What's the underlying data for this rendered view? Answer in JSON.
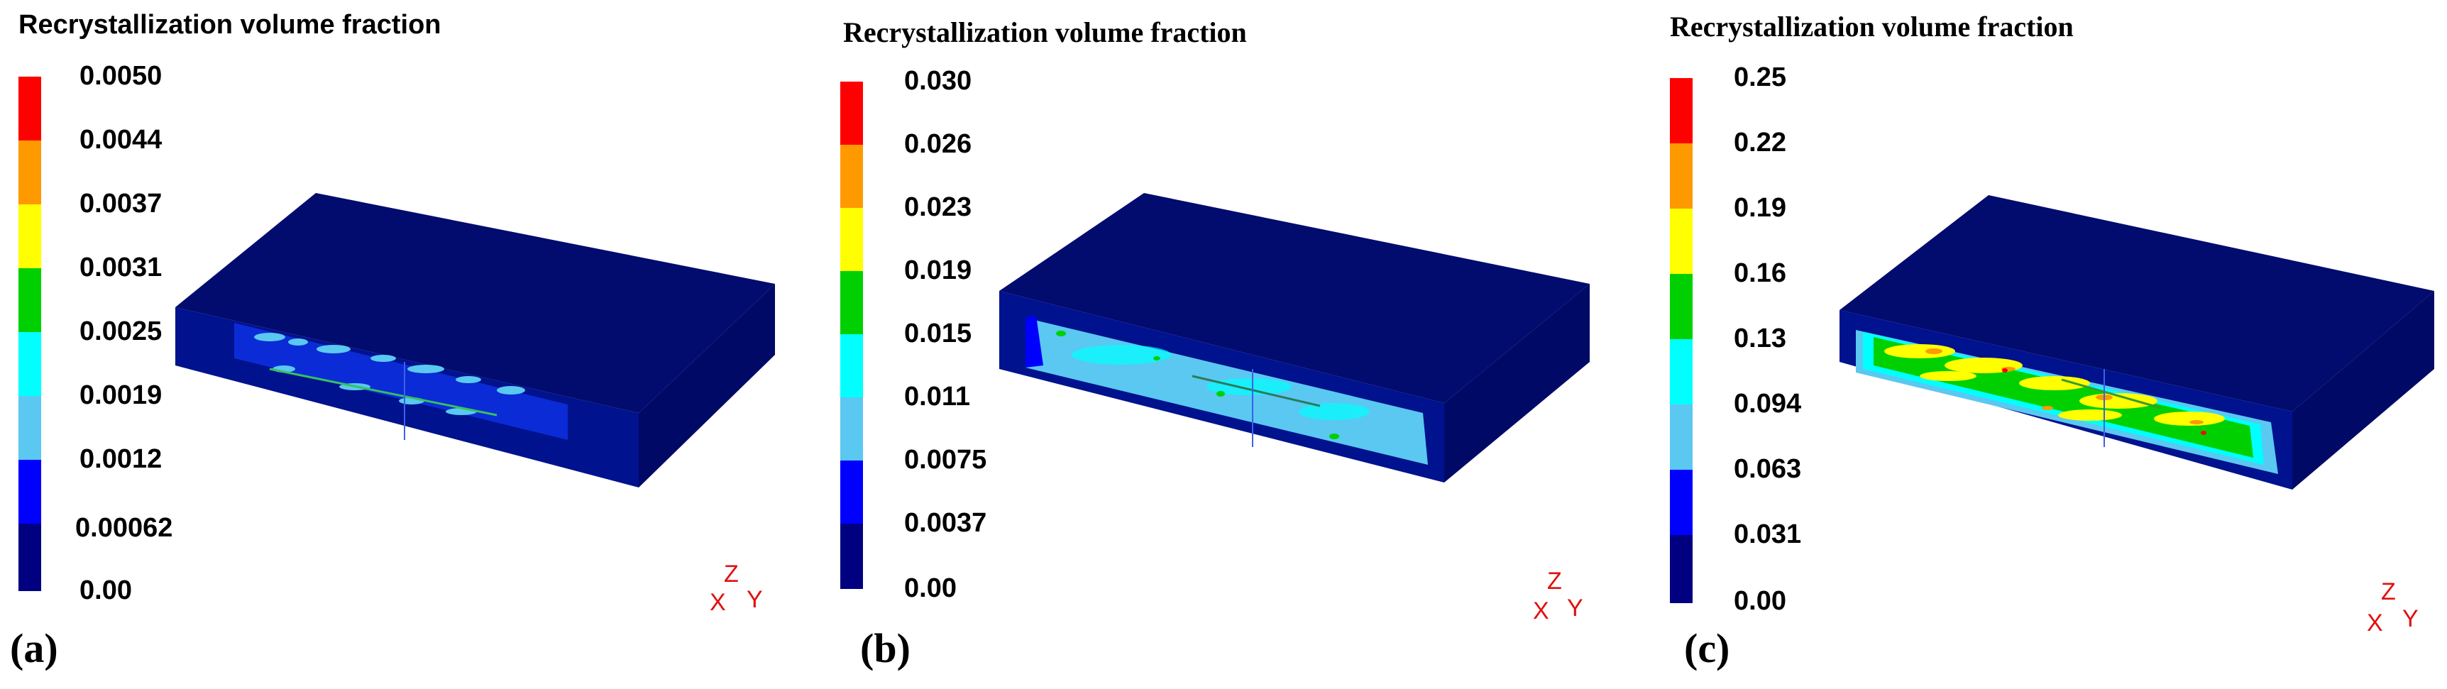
{
  "colormap": [
    "#000080",
    "#0000ff",
    "#1e90ff",
    "#5ac8f0",
    "#00ffff",
    "#00d000",
    "#ffff00",
    "#ff9900",
    "#ff0000"
  ],
  "panels": [
    {
      "id": "a",
      "label": "(a)",
      "title": "Recrystallization volume fraction",
      "ticks": [
        "0.0050",
        "0.0044",
        "0.0037",
        "0.0031",
        "0.0025",
        "0.0019",
        "0.0012",
        "0.00062",
        "0.00"
      ]
    },
    {
      "id": "b",
      "label": "(b)",
      "title": "Recrystallization volume fraction",
      "ticks": [
        "0.030",
        "0.026",
        "0.023",
        "0.019",
        "0.015",
        "0.011",
        "0.0075",
        "0.0037",
        "0.00"
      ]
    },
    {
      "id": "c",
      "label": "(c)",
      "title": "Recrystallization volume fraction",
      "ticks": [
        "0.25",
        "0.22",
        "0.19",
        "0.16",
        "0.13",
        "0.094",
        "0.063",
        "0.031",
        "0.00"
      ]
    }
  ],
  "axis_labels": {
    "z": "Z",
    "x": "X",
    "y": "Y"
  }
}
